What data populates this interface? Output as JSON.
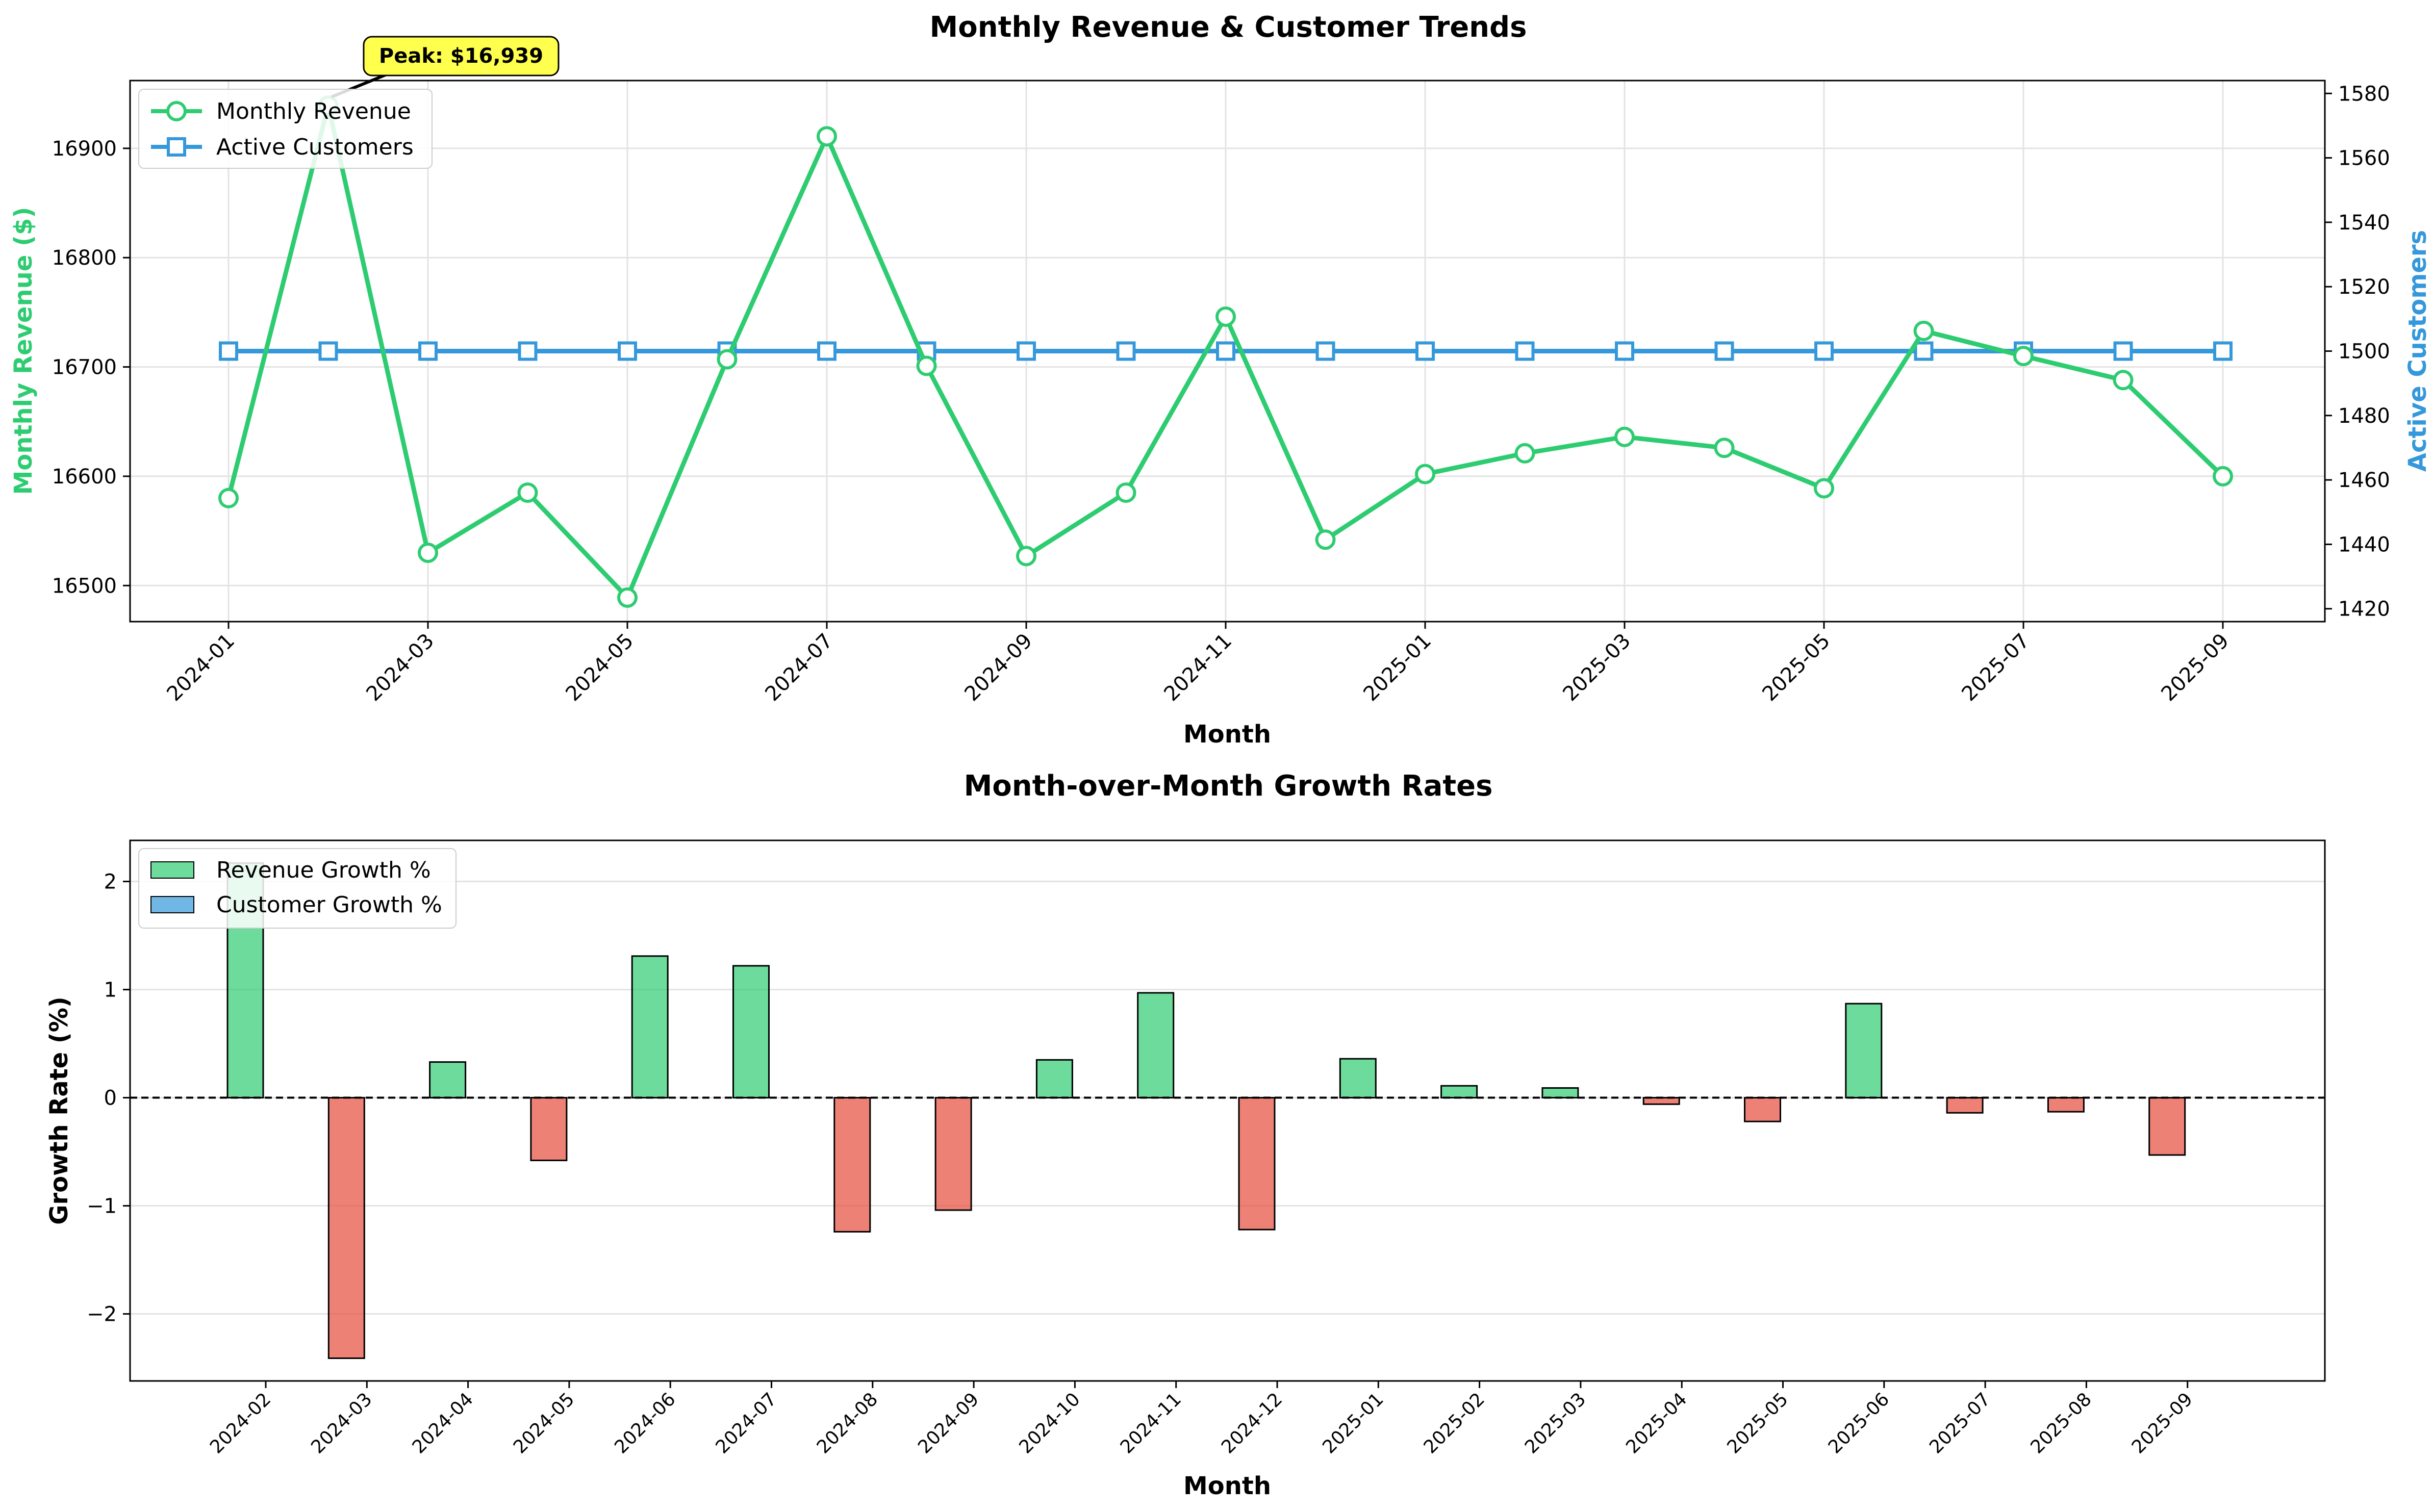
{
  "chart_data": [
    {
      "type": "line",
      "title": "Monthly Revenue & Customer Trends",
      "xlabel": "Month",
      "ylabel": "Monthly Revenue ($)",
      "y2label": "Active Customers",
      "x": [
        "2024-01",
        "2024-02",
        "2024-03",
        "2024-04",
        "2024-05",
        "2024-06",
        "2024-07",
        "2024-08",
        "2024-09",
        "2024-10",
        "2024-11",
        "2024-12",
        "2025-01",
        "2025-02",
        "2025-03",
        "2025-04",
        "2025-05",
        "2025-06",
        "2025-07",
        "2025-08",
        "2025-09"
      ],
      "x_ticks": [
        "2024-01",
        "2024-03",
        "2024-05",
        "2024-07",
        "2024-09",
        "2024-11",
        "2025-01",
        "2025-03",
        "2025-05",
        "2025-07",
        "2025-09"
      ],
      "ylim": [
        16467,
        16962
      ],
      "y_ticks": [
        16500,
        16600,
        16700,
        16800,
        16900
      ],
      "y2lim": [
        1416,
        1584
      ],
      "y2_ticks": [
        1420,
        1440,
        1460,
        1480,
        1500,
        1520,
        1540,
        1560,
        1580
      ],
      "series": [
        {
          "name": "Monthly Revenue",
          "axis": "left",
          "color": "#2ecc71",
          "marker": "circle",
          "values": [
            16580,
            16939,
            16530,
            16585,
            16489,
            16707,
            16911,
            16701,
            16527,
            16585,
            16746,
            16542,
            16602,
            16621,
            16636,
            16626,
            16589,
            16733,
            16710,
            16688,
            16600
          ]
        },
        {
          "name": "Active Customers",
          "axis": "right",
          "color": "#3498db",
          "marker": "square",
          "values": [
            1500,
            1500,
            1500,
            1500,
            1500,
            1500,
            1500,
            1500,
            1500,
            1500,
            1500,
            1500,
            1500,
            1500,
            1500,
            1500,
            1500,
            1500,
            1500,
            1500,
            1500
          ]
        }
      ],
      "annotation": {
        "text": "Peak: $16,939",
        "x": "2024-02",
        "y": 16939
      },
      "legend": "top-left",
      "grid": true
    },
    {
      "type": "bar",
      "title": "Month-over-Month Growth Rates",
      "xlabel": "Month",
      "ylabel": "Growth Rate (%)",
      "categories": [
        "2024-02",
        "2024-03",
        "2024-04",
        "2024-05",
        "2024-06",
        "2024-07",
        "2024-08",
        "2024-09",
        "2024-10",
        "2024-11",
        "2024-12",
        "2025-01",
        "2025-02",
        "2025-03",
        "2025-04",
        "2025-05",
        "2025-06",
        "2025-07",
        "2025-08",
        "2025-09"
      ],
      "ylim": [
        -2.62,
        2.38
      ],
      "y_ticks": [
        -2,
        -1,
        0,
        1,
        2
      ],
      "y_tick_labels": [
        "−2",
        "−1",
        "0",
        "1",
        "2"
      ],
      "series": [
        {
          "name": "Revenue Growth %",
          "color": "#2ecc71",
          "negative_color": "#e74c3c",
          "values": [
            2.17,
            -2.41,
            0.33,
            -0.58,
            1.31,
            1.22,
            -1.24,
            -1.04,
            0.35,
            0.97,
            -1.22,
            0.36,
            0.11,
            0.09,
            -0.06,
            -0.22,
            0.87,
            -0.14,
            -0.13,
            -0.53
          ]
        },
        {
          "name": "Customer Growth %",
          "color": "#3498db",
          "values": [
            0,
            0,
            0,
            0,
            0,
            0,
            0,
            0,
            0,
            0,
            0,
            0,
            0,
            0,
            0,
            0,
            0,
            0,
            0,
            0
          ]
        }
      ],
      "legend": "top-left",
      "grid": true
    }
  ]
}
